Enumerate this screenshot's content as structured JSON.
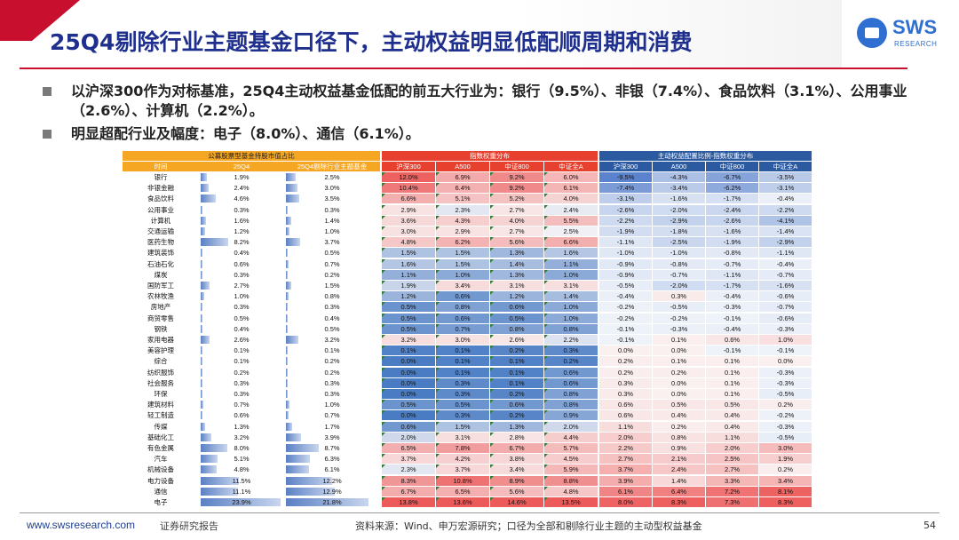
{
  "header": {
    "title": "25Q4剔除行业主题基金口径下，主动权益明显低配顺周期和消费",
    "logo_text": "SWS",
    "logo_sub": "RESEARCH",
    "accent_color": "#c8102e",
    "title_color": "#1f2f8e"
  },
  "bullets": [
    "以沪深300作为对标基准，25Q4主动权益基金低配的前五大行业为：银行（9.5%）、非银（7.4%）、食品饮料（3.1%）、公用事业（2.6%）、计算机（2.2%）。",
    "明显超配行业及幅度：电子（8.0%）、通信（6.1%）。"
  ],
  "table": {
    "group_headers": {
      "weight": "公募股票型基金持股市值占比",
      "index": "指数权重分布",
      "diff": "主动权益配置比例-指数权重分布"
    },
    "columns": {
      "name": "时间",
      "q4": "25Q4",
      "q4ex": "25Q4剔除行业主题基金",
      "index": [
        "沪深300",
        "A500",
        "中证800",
        "中证全A"
      ],
      "diff": [
        "沪深300",
        "A500",
        "中证800",
        "中证全A"
      ]
    },
    "rows": [
      {
        "name": "银行",
        "q4": "1.9%",
        "q4ex": "2.5%",
        "idx": [
          "12.0%",
          "6.9%",
          "9.2%",
          "6.0%"
        ],
        "diff": [
          "-9.5%",
          "-4.3%",
          "-6.7%",
          "-3.5%"
        ]
      },
      {
        "name": "非银金融",
        "q4": "2.4%",
        "q4ex": "3.0%",
        "idx": [
          "10.4%",
          "6.4%",
          "9.2%",
          "6.1%"
        ],
        "diff": [
          "-7.4%",
          "-3.4%",
          "-6.2%",
          "-3.1%"
        ]
      },
      {
        "name": "食品饮料",
        "q4": "4.6%",
        "q4ex": "3.5%",
        "idx": [
          "6.6%",
          "5.1%",
          "5.2%",
          "4.0%"
        ],
        "diff": [
          "-3.1%",
          "-1.6%",
          "-1.7%",
          "-0.4%"
        ]
      },
      {
        "name": "公用事业",
        "q4": "0.3%",
        "q4ex": "0.3%",
        "idx": [
          "2.9%",
          "2.3%",
          "2.7%",
          "2.4%"
        ],
        "diff": [
          "-2.6%",
          "-2.0%",
          "-2.4%",
          "-2.2%"
        ]
      },
      {
        "name": "计算机",
        "q4": "1.6%",
        "q4ex": "1.4%",
        "idx": [
          "3.6%",
          "4.3%",
          "4.0%",
          "5.5%"
        ],
        "diff": [
          "-2.2%",
          "-2.9%",
          "-2.6%",
          "-4.1%"
        ]
      },
      {
        "name": "交通运输",
        "q4": "1.2%",
        "q4ex": "1.0%",
        "idx": [
          "3.0%",
          "2.9%",
          "2.7%",
          "2.5%"
        ],
        "diff": [
          "-1.9%",
          "-1.8%",
          "-1.6%",
          "-1.4%"
        ]
      },
      {
        "name": "医药生物",
        "q4": "8.2%",
        "q4ex": "3.7%",
        "idx": [
          "4.8%",
          "6.2%",
          "5.6%",
          "6.6%"
        ],
        "diff": [
          "-1.1%",
          "-2.5%",
          "-1.9%",
          "-2.9%"
        ]
      },
      {
        "name": "建筑装饰",
        "q4": "0.4%",
        "q4ex": "0.5%",
        "idx": [
          "1.5%",
          "1.5%",
          "1.3%",
          "1.6%"
        ],
        "diff": [
          "-1.0%",
          "-1.0%",
          "-0.8%",
          "-1.1%"
        ]
      },
      {
        "name": "石油石化",
        "q4": "0.6%",
        "q4ex": "0.7%",
        "idx": [
          "1.6%",
          "1.5%",
          "1.4%",
          "1.1%"
        ],
        "diff": [
          "-0.9%",
          "-0.8%",
          "-0.7%",
          "-0.4%"
        ]
      },
      {
        "name": "煤炭",
        "q4": "0.3%",
        "q4ex": "0.2%",
        "idx": [
          "1.1%",
          "1.0%",
          "1.3%",
          "1.0%"
        ],
        "diff": [
          "-0.9%",
          "-0.7%",
          "-1.1%",
          "-0.7%"
        ]
      },
      {
        "name": "国防军工",
        "q4": "2.7%",
        "q4ex": "1.5%",
        "idx": [
          "1.9%",
          "3.4%",
          "3.1%",
          "3.1%"
        ],
        "diff": [
          "-0.5%",
          "-2.0%",
          "-1.7%",
          "-1.6%"
        ]
      },
      {
        "name": "农林牧渔",
        "q4": "1.0%",
        "q4ex": "0.8%",
        "idx": [
          "1.2%",
          "0.6%",
          "1.2%",
          "1.4%"
        ],
        "diff": [
          "-0.4%",
          "0.3%",
          "-0.4%",
          "-0.6%"
        ]
      },
      {
        "name": "房地产",
        "q4": "0.3%",
        "q4ex": "0.3%",
        "idx": [
          "0.5%",
          "0.8%",
          "0.6%",
          "1.0%"
        ],
        "diff": [
          "-0.2%",
          "-0.5%",
          "-0.3%",
          "-0.7%"
        ]
      },
      {
        "name": "商贸零售",
        "q4": "0.5%",
        "q4ex": "0.4%",
        "idx": [
          "0.5%",
          "0.6%",
          "0.5%",
          "1.0%"
        ],
        "diff": [
          "-0.2%",
          "-0.2%",
          "-0.1%",
          "-0.6%"
        ]
      },
      {
        "name": "钢铁",
        "q4": "0.4%",
        "q4ex": "0.5%",
        "idx": [
          "0.5%",
          "0.7%",
          "0.8%",
          "0.8%"
        ],
        "diff": [
          "-0.1%",
          "-0.3%",
          "-0.4%",
          "-0.3%"
        ]
      },
      {
        "name": "家用电器",
        "q4": "2.6%",
        "q4ex": "3.2%",
        "idx": [
          "3.2%",
          "3.0%",
          "2.6%",
          "2.2%"
        ],
        "diff": [
          "-0.1%",
          "0.1%",
          "0.6%",
          "1.0%"
        ]
      },
      {
        "name": "美容护理",
        "q4": "0.1%",
        "q4ex": "0.1%",
        "idx": [
          "0.1%",
          "0.1%",
          "0.2%",
          "0.3%"
        ],
        "diff": [
          "0.0%",
          "0.0%",
          "-0.1%",
          "-0.1%"
        ]
      },
      {
        "name": "综合",
        "q4": "0.1%",
        "q4ex": "0.2%",
        "idx": [
          "0.0%",
          "0.1%",
          "0.1%",
          "0.2%"
        ],
        "diff": [
          "0.2%",
          "0.1%",
          "0.1%",
          "0.0%"
        ]
      },
      {
        "name": "纺织服饰",
        "q4": "0.2%",
        "q4ex": "0.2%",
        "idx": [
          "0.0%",
          "0.1%",
          "0.1%",
          "0.6%"
        ],
        "diff": [
          "0.2%",
          "0.2%",
          "0.1%",
          "-0.3%"
        ]
      },
      {
        "name": "社会服务",
        "q4": "0.3%",
        "q4ex": "0.3%",
        "idx": [
          "0.0%",
          "0.3%",
          "0.1%",
          "0.6%"
        ],
        "diff": [
          "0.3%",
          "0.0%",
          "0.1%",
          "-0.3%"
        ]
      },
      {
        "name": "环保",
        "q4": "0.3%",
        "q4ex": "0.3%",
        "idx": [
          "0.0%",
          "0.3%",
          "0.2%",
          "0.8%"
        ],
        "diff": [
          "0.3%",
          "0.0%",
          "0.1%",
          "-0.5%"
        ]
      },
      {
        "name": "建筑材料",
        "q4": "0.7%",
        "q4ex": "1.0%",
        "idx": [
          "0.5%",
          "0.5%",
          "0.6%",
          "0.8%"
        ],
        "diff": [
          "0.6%",
          "0.5%",
          "0.5%",
          "0.2%"
        ]
      },
      {
        "name": "轻工制造",
        "q4": "0.6%",
        "q4ex": "0.7%",
        "idx": [
          "0.0%",
          "0.3%",
          "0.2%",
          "0.9%"
        ],
        "diff": [
          "0.6%",
          "0.4%",
          "0.4%",
          "-0.2%"
        ]
      },
      {
        "name": "传媒",
        "q4": "1.3%",
        "q4ex": "1.7%",
        "idx": [
          "0.6%",
          "1.5%",
          "1.3%",
          "2.0%"
        ],
        "diff": [
          "1.1%",
          "0.2%",
          "0.4%",
          "-0.3%"
        ]
      },
      {
        "name": "基础化工",
        "q4": "3.2%",
        "q4ex": "3.9%",
        "idx": [
          "2.0%",
          "3.1%",
          "2.8%",
          "4.4%"
        ],
        "diff": [
          "2.0%",
          "0.8%",
          "1.1%",
          "-0.5%"
        ]
      },
      {
        "name": "有色金属",
        "q4": "8.0%",
        "q4ex": "8.7%",
        "idx": [
          "6.5%",
          "7.8%",
          "6.7%",
          "5.7%"
        ],
        "diff": [
          "2.2%",
          "0.9%",
          "2.0%",
          "3.0%"
        ]
      },
      {
        "name": "汽车",
        "q4": "5.1%",
        "q4ex": "6.3%",
        "idx": [
          "3.7%",
          "4.2%",
          "3.8%",
          "4.5%"
        ],
        "diff": [
          "2.7%",
          "2.1%",
          "2.5%",
          "1.9%"
        ]
      },
      {
        "name": "机械设备",
        "q4": "4.8%",
        "q4ex": "6.1%",
        "idx": [
          "2.3%",
          "3.7%",
          "3.4%",
          "5.9%"
        ],
        "diff": [
          "3.7%",
          "2.4%",
          "2.7%",
          "0.2%"
        ]
      },
      {
        "name": "电力设备",
        "q4": "11.5%",
        "q4ex": "12.2%",
        "idx": [
          "8.3%",
          "10.8%",
          "8.9%",
          "8.8%"
        ],
        "diff": [
          "3.9%",
          "1.4%",
          "3.3%",
          "3.4%"
        ]
      },
      {
        "name": "通信",
        "q4": "11.1%",
        "q4ex": "12.9%",
        "idx": [
          "6.7%",
          "6.5%",
          "5.6%",
          "4.8%"
        ],
        "diff": [
          "6.1%",
          "6.4%",
          "7.2%",
          "8.1%"
        ]
      },
      {
        "name": "电子",
        "q4": "23.9%",
        "q4ex": "21.8%",
        "idx": [
          "13.8%",
          "13.6%",
          "14.6%",
          "13.5%"
        ],
        "diff": [
          "8.0%",
          "8.3%",
          "7.3%",
          "8.3%"
        ]
      }
    ]
  },
  "footer": {
    "website": "www.swsresearch.com",
    "label": "证券研究报告",
    "source": "资料来源：Wind、申万宏源研究；口径为全部和剔除行业主题的主动型权益基金",
    "page": "54"
  }
}
